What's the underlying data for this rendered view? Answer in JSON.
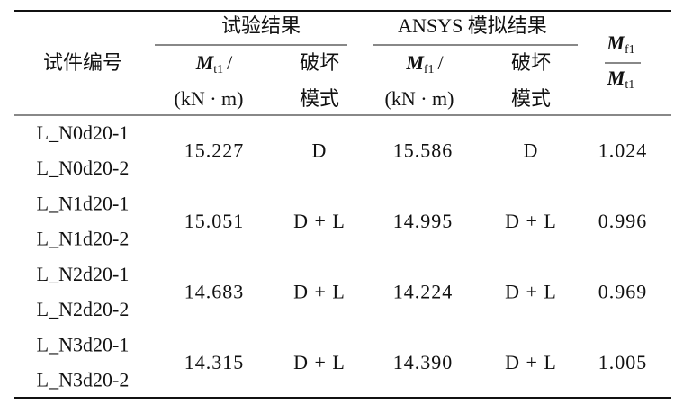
{
  "header": {
    "specimen": "试件编号",
    "test_group": "试验结果",
    "ansys_group": "ANSYS 模拟结果",
    "test_moment": {
      "symbol": "M",
      "sub": "t1",
      "slash": "/",
      "unit": "(kN · m)"
    },
    "test_mode": [
      "破坏",
      "模式"
    ],
    "ansys_moment": {
      "symbol": "M",
      "sub": "f1",
      "slash": "/",
      "unit": "(kN · m)"
    },
    "ansys_mode": [
      "破坏",
      "模式"
    ],
    "ratio": {
      "num_symbol": "M",
      "num_sub": "f1",
      "den_symbol": "M",
      "den_sub": "t1"
    }
  },
  "rows": [
    {
      "specimens": [
        "L_N0d20-1",
        "L_N0d20-2"
      ],
      "test_moment": "15.227",
      "test_mode": "D",
      "ansys_moment": "15.586",
      "ansys_mode": "D",
      "ratio": "1.024"
    },
    {
      "specimens": [
        "L_N1d20-1",
        "L_N1d20-2"
      ],
      "test_moment": "15.051",
      "test_mode": "D + L",
      "ansys_moment": "14.995",
      "ansys_mode": "D + L",
      "ratio": "0.996"
    },
    {
      "specimens": [
        "L_N2d20-1",
        "L_N2d20-2"
      ],
      "test_moment": "14.683",
      "test_mode": "D + L",
      "ansys_moment": "14.224",
      "ansys_mode": "D + L",
      "ratio": "0.969"
    },
    {
      "specimens": [
        "L_N3d20-1",
        "L_N3d20-2"
      ],
      "test_moment": "14.315",
      "test_mode": "D + L",
      "ansys_moment": "14.390",
      "ansys_mode": "D + L",
      "ratio": "1.005"
    }
  ]
}
